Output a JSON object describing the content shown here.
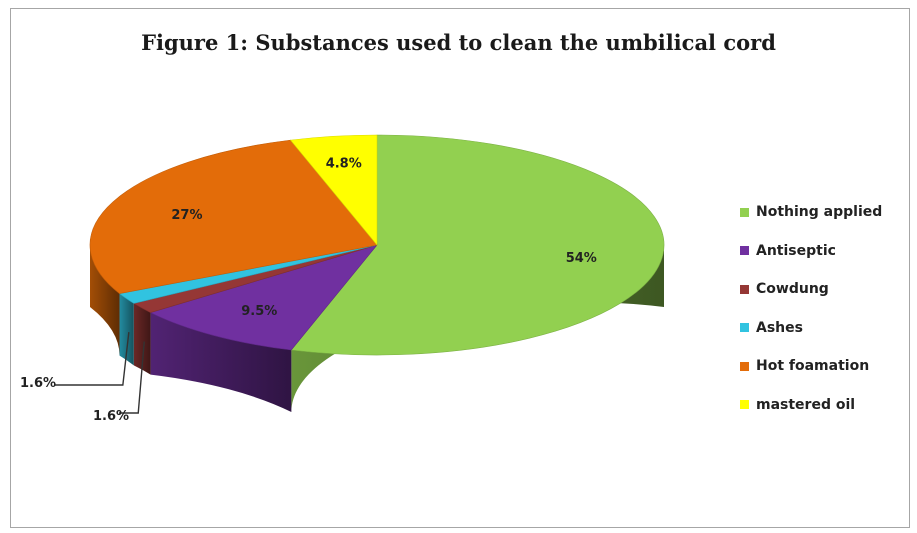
{
  "chart_data": {
    "type": "pie",
    "title": "Figure 1: Substances used to clean the umbilical cord",
    "legend_position": "right",
    "slices": [
      {
        "label": "Nothing applied",
        "value": 54,
        "value_label": "54%",
        "color": "#92d050"
      },
      {
        "label": "Antiseptic",
        "value": 9.5,
        "value_label": "9.5%",
        "color": "#7030a0"
      },
      {
        "label": "Cowdung",
        "value": 1.6,
        "value_label": "1.6%",
        "color": "#953735"
      },
      {
        "label": "Ashes",
        "value": 1.6,
        "value_label": "1.6%",
        "color": "#31c3e0"
      },
      {
        "label": "Hot foamation",
        "value": 27,
        "value_label": "27%",
        "color": "#e36c09"
      },
      {
        "label": "mastered oil",
        "value": 4.8,
        "value_label": "4.8%",
        "color": "#ffff00"
      }
    ]
  }
}
